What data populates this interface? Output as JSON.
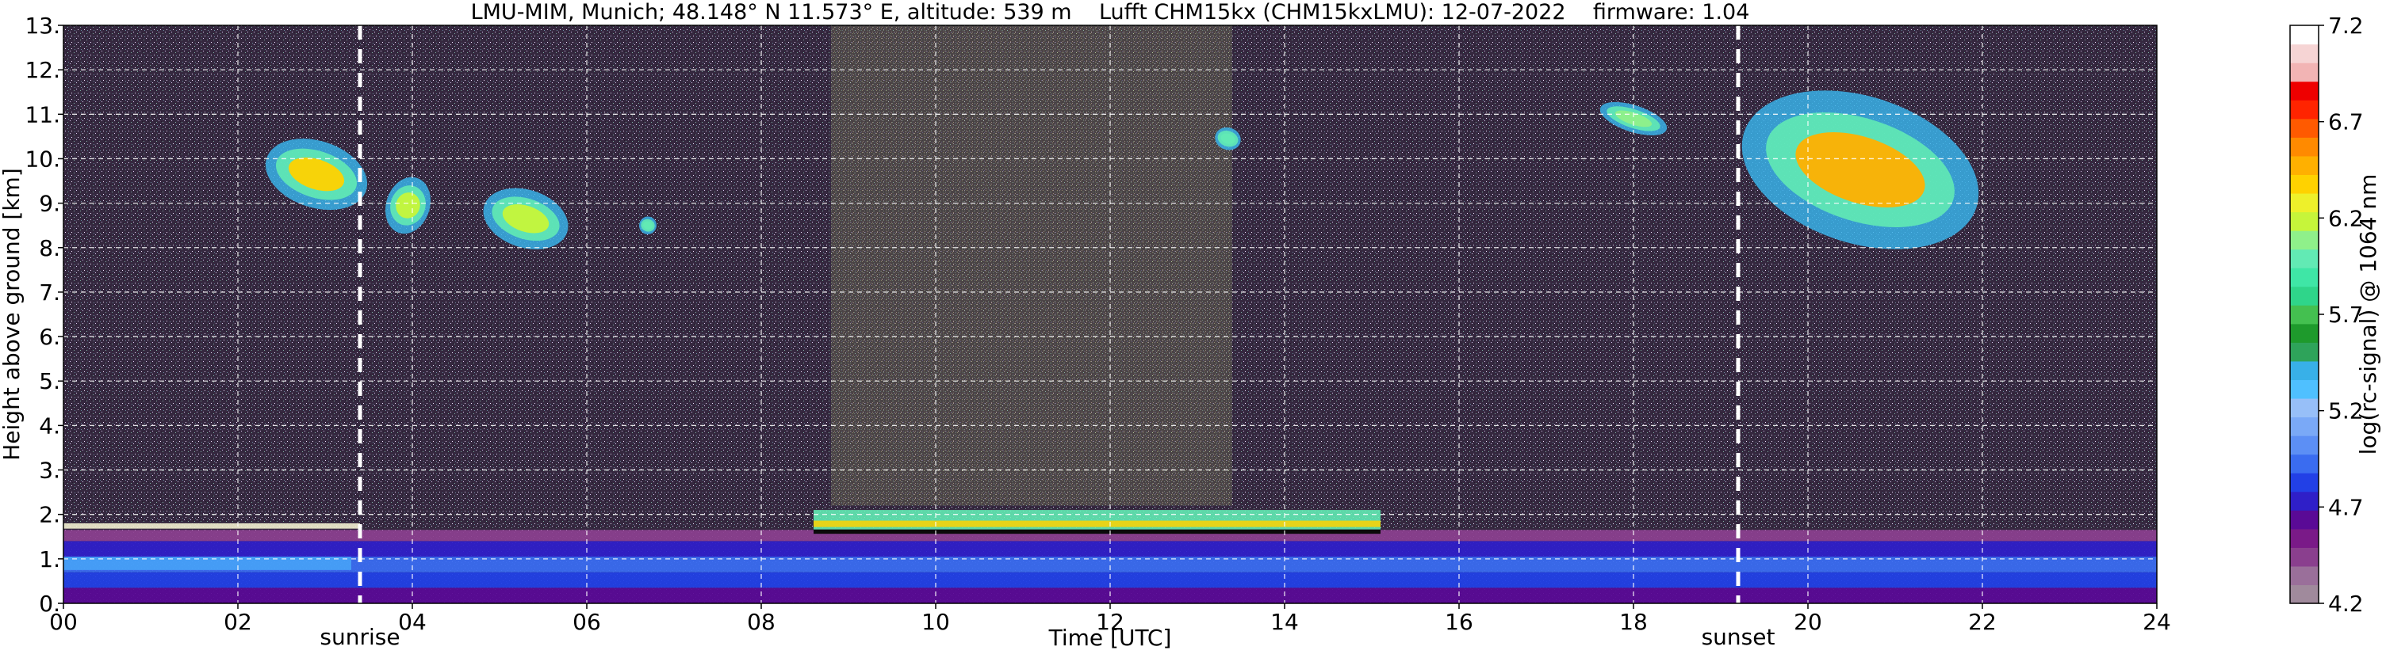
{
  "chart_data": {
    "type": "heatmap",
    "title": "LMU-MIM, Munich; 48.148° N 11.573° E, altitude: 539 m    Lufft CHM15kx (CHM15kxLMU): 12-07-2022    firmware: 1.04",
    "xlabel": "Time [UTC]",
    "ylabel": "Height above ground [km]",
    "xlim": [
      0,
      24
    ],
    "ylim": [
      0,
      13
    ],
    "x_tick_labels": [
      "00",
      "02",
      "04",
      "06",
      "08",
      "10",
      "12",
      "14",
      "16",
      "18",
      "20",
      "22",
      "24"
    ],
    "y_tick_labels": [
      "0.",
      "1.",
      "2.",
      "3.",
      "4.",
      "5.",
      "6.",
      "7.",
      "8.",
      "9.",
      "10.",
      "11.",
      "12.",
      "13."
    ],
    "grid": true,
    "colorbar": {
      "label": "log(rc-signal) @ 1064 nm",
      "range": [
        4.2,
        7.2
      ],
      "tick_labels": [
        "4.2",
        "4.7",
        "5.2",
        "5.7",
        "6.2",
        "6.7",
        "7.2"
      ],
      "colors": [
        "#a08a9c",
        "#9a6f9a",
        "#8a3f8e",
        "#7a1a88",
        "#5a0a96",
        "#2f1fc8",
        "#2240e6",
        "#3a6cf0",
        "#5c8ff5",
        "#7aa9f7",
        "#97bff8",
        "#4fc0ff",
        "#38b0e8",
        "#2ea35a",
        "#1e9a2c",
        "#44c050",
        "#2fd58a",
        "#3fe6a6",
        "#62eab4",
        "#8ff08a",
        "#c6f53a",
        "#eef02a",
        "#ffd200",
        "#ffb000",
        "#ff8a00",
        "#ff5a00",
        "#ff2400",
        "#ee0000",
        "#f2b4b4",
        "#f6d4d4",
        "#ffffff"
      ]
    },
    "annotations": [
      {
        "label": "sunrise",
        "x": 3.4
      },
      {
        "label": "sunset",
        "x": 19.2
      }
    ],
    "signal_features": [
      {
        "feature": "boundary-layer aerosol",
        "x_range": [
          0,
          24
        ],
        "y_range": [
          0,
          1.8
        ],
        "level": 4.9
      },
      {
        "feature": "cloud tops 08-15 UTC",
        "x_range": [
          8.6,
          15.1
        ],
        "y_range": [
          1.3,
          2.1
        ],
        "level": 5.9
      },
      {
        "feature": "cirrus",
        "x_range": [
          2.3,
          3.5
        ],
        "y_range": [
          8.9,
          10.4
        ],
        "level": 6.4
      },
      {
        "feature": "cirrus",
        "x_range": [
          3.7,
          4.2
        ],
        "y_range": [
          8.3,
          9.6
        ],
        "level": 6.2
      },
      {
        "feature": "cirrus",
        "x_range": [
          4.8,
          5.8
        ],
        "y_range": [
          8.0,
          9.3
        ],
        "level": 6.2
      },
      {
        "feature": "cirrus",
        "x_range": [
          6.6,
          6.8
        ],
        "y_range": [
          8.3,
          8.7
        ],
        "level": 6.0
      },
      {
        "feature": "cirrus",
        "x_range": [
          13.2,
          13.5
        ],
        "y_range": [
          10.2,
          10.7
        ],
        "level": 6.0
      },
      {
        "feature": "cirrus",
        "x_range": [
          17.6,
          18.4
        ],
        "y_range": [
          10.6,
          11.2
        ],
        "level": 6.1
      },
      {
        "feature": "cirrus",
        "x_range": [
          19.2,
          22.0
        ],
        "y_range": [
          8.1,
          11.4
        ],
        "level": 6.5
      }
    ]
  }
}
